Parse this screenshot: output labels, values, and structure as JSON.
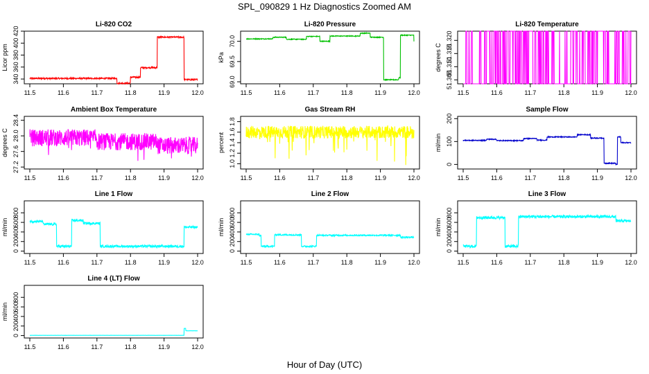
{
  "page": {
    "title": "SPL_090829  1 Hz Diagnostics Zoomed AM",
    "xlabel": "Hour of Day (UTC)"
  },
  "chart_data": [
    {
      "id": "co2",
      "type": "line",
      "title": "Li-820 CO2",
      "ylabel": "Licor ppm",
      "color": "#ff0000",
      "xlim": [
        11.5,
        12.0
      ],
      "ylim": [
        332,
        420
      ],
      "xticks": [
        "11.5",
        "11.6",
        "11.7",
        "11.8",
        "11.9",
        "12.0"
      ],
      "yticks": [
        340,
        360,
        380,
        400,
        420
      ],
      "ytick_labels": [
        "340",
        "360",
        "380",
        "400",
        "420"
      ],
      "pattern": "steps",
      "steps": [
        [
          11.5,
          341
        ],
        [
          11.76,
          333
        ],
        [
          11.8,
          343
        ],
        [
          11.83,
          359
        ],
        [
          11.88,
          410
        ],
        [
          11.96,
          339
        ],
        [
          12.0,
          339
        ]
      ],
      "noise": 1.2
    },
    {
      "id": "pressure",
      "type": "line",
      "title": "Li-820 Pressure",
      "ylabel": "kPa",
      "color": "#00c000",
      "xlim": [
        11.5,
        12.0
      ],
      "ylim": [
        68.95,
        70.25
      ],
      "xticks": [
        "11.5",
        "11.6",
        "11.7",
        "11.8",
        "11.9",
        "12.0"
      ],
      "yticks": [
        69.0,
        69.5,
        70.0
      ],
      "ytick_labels": [
        "69.0",
        "69.5",
        "70.0"
      ],
      "pattern": "steps",
      "steps": [
        [
          11.5,
          70.06
        ],
        [
          11.53,
          70.06
        ],
        [
          11.58,
          70.1
        ],
        [
          11.62,
          70.05
        ],
        [
          11.67,
          70.05
        ],
        [
          11.68,
          70.12
        ],
        [
          11.72,
          70.0
        ],
        [
          11.75,
          70.13
        ],
        [
          11.84,
          70.2
        ],
        [
          11.87,
          70.1
        ],
        [
          11.91,
          69.05
        ],
        [
          11.955,
          69.1
        ],
        [
          11.96,
          70.15
        ],
        [
          12.0,
          70.0
        ]
      ],
      "noise": 0.01
    },
    {
      "id": "licor_temp",
      "type": "line",
      "title": "Li-820 Temperature",
      "ylabel": "degrees C",
      "color": "#ff00ff",
      "xlim": [
        11.5,
        12.0
      ],
      "ylim": [
        51.3035,
        51.3235
      ],
      "xticks": [
        "11.5",
        "11.6",
        "11.7",
        "11.8",
        "11.9",
        "12.0"
      ],
      "yticks": [
        51.305,
        51.31,
        51.315,
        51.32
      ],
      "ytick_labels": [
        "51.305",
        "51.310",
        "51.315",
        "51.320"
      ],
      "pattern": "toggle",
      "low": 51.3035,
      "high": 51.3235
    },
    {
      "id": "ambient_temp",
      "type": "line",
      "title": "Ambient Box Temperature",
      "ylabel": "degrees C",
      "color": "#ff00ff",
      "xlim": [
        11.5,
        12.0
      ],
      "ylim": [
        27.15,
        28.5
      ],
      "xticks": [
        "11.5",
        "11.6",
        "11.7",
        "11.8",
        "11.9",
        "12.0"
      ],
      "yticks": [
        27.2,
        27.6,
        28.0,
        28.4
      ],
      "ytick_labels": [
        "27.2",
        "27.6",
        "28.0",
        "28.4"
      ],
      "pattern": "noise_band",
      "steps": [
        [
          11.5,
          27.95
        ],
        [
          11.7,
          27.85
        ],
        [
          11.88,
          27.75
        ],
        [
          12.0,
          27.72
        ]
      ],
      "noise": 0.22
    },
    {
      "id": "gas_rh",
      "type": "line",
      "title": "Gas Stream RH",
      "ylabel": "percent",
      "color": "#ffff00",
      "xlim": [
        11.5,
        12.0
      ],
      "ylim": [
        0.9,
        1.9
      ],
      "xticks": [
        "11.5",
        "11.6",
        "11.7",
        "11.8",
        "11.9",
        "12.0"
      ],
      "yticks": [
        1.0,
        1.2,
        1.4,
        1.6,
        1.8
      ],
      "ytick_labels": [
        "1.0",
        "1.2",
        "1.4",
        "1.6",
        "1.8"
      ],
      "pattern": "noise_band",
      "steps": [
        [
          11.5,
          1.6
        ],
        [
          12.0,
          1.6
        ]
      ],
      "noise": 0.12,
      "spikes_down": 0.55
    },
    {
      "id": "sample_flow",
      "type": "line",
      "title": "Sample Flow",
      "ylabel": "ml/min",
      "color": "#0000cc",
      "xlim": [
        11.5,
        12.0
      ],
      "ylim": [
        -20,
        210
      ],
      "xticks": [
        "11.5",
        "11.6",
        "11.7",
        "11.8",
        "11.9",
        "12.0"
      ],
      "yticks": [
        0,
        100,
        200
      ],
      "ytick_labels": [
        "0",
        "100",
        "200"
      ],
      "pattern": "steps",
      "steps": [
        [
          11.5,
          105
        ],
        [
          11.57,
          110
        ],
        [
          11.6,
          104
        ],
        [
          11.68,
          113
        ],
        [
          11.72,
          106
        ],
        [
          11.75,
          120
        ],
        [
          11.84,
          130
        ],
        [
          11.88,
          115
        ],
        [
          11.92,
          5
        ],
        [
          11.955,
          0
        ],
        [
          11.96,
          120
        ],
        [
          11.97,
          95
        ],
        [
          12.0,
          95
        ]
      ],
      "noise": 2
    },
    {
      "id": "line1_flow",
      "type": "line",
      "title": "Line 1 Flow",
      "ylabel": "ml/min",
      "color": "#00ffff",
      "xlim": [
        11.5,
        12.0
      ],
      "ylim": [
        -50,
        1050
      ],
      "xticks": [
        "11.5",
        "11.6",
        "11.7",
        "11.8",
        "11.9",
        "12.0"
      ],
      "yticks": [
        0,
        200,
        400,
        600,
        800
      ],
      "ytick_labels": [
        "0",
        "200",
        "400",
        "600",
        "800"
      ],
      "pattern": "steps",
      "steps": [
        [
          11.5,
          620
        ],
        [
          11.54,
          560
        ],
        [
          11.58,
          100
        ],
        [
          11.625,
          640
        ],
        [
          11.66,
          580
        ],
        [
          11.71,
          100
        ],
        [
          11.955,
          100
        ],
        [
          11.96,
          500
        ],
        [
          12.0,
          500
        ]
      ],
      "noise": 25
    },
    {
      "id": "line2_flow",
      "type": "line",
      "title": "Line 2 Flow",
      "ylabel": "ml/min",
      "color": "#00ffff",
      "xlim": [
        11.5,
        12.0
      ],
      "ylim": [
        -50,
        1050
      ],
      "xticks": [
        "11.5",
        "11.6",
        "11.7",
        "11.8",
        "11.9",
        "12.0"
      ],
      "yticks": [
        0,
        200,
        400,
        600,
        800
      ],
      "ytick_labels": [
        "0",
        "200",
        "400",
        "600",
        "800"
      ],
      "pattern": "steps",
      "steps": [
        [
          11.5,
          350
        ],
        [
          11.54,
          320
        ],
        [
          11.545,
          100
        ],
        [
          11.585,
          340
        ],
        [
          11.665,
          100
        ],
        [
          11.71,
          330
        ],
        [
          11.955,
          330
        ],
        [
          11.96,
          290
        ],
        [
          12.0,
          290
        ]
      ],
      "noise": 15
    },
    {
      "id": "line3_flow",
      "type": "line",
      "title": "Line 3 Flow",
      "ylabel": "ml/min",
      "color": "#00ffff",
      "xlim": [
        11.5,
        12.0
      ],
      "ylim": [
        -50,
        1050
      ],
      "xticks": [
        "11.5",
        "11.6",
        "11.7",
        "11.8",
        "11.9",
        "12.0"
      ],
      "yticks": [
        0,
        200,
        400,
        600,
        800
      ],
      "ytick_labels": [
        "0",
        "200",
        "400",
        "600",
        "800"
      ],
      "pattern": "steps",
      "steps": [
        [
          11.5,
          100
        ],
        [
          11.54,
          700
        ],
        [
          11.625,
          100
        ],
        [
          11.665,
          720
        ],
        [
          11.95,
          720
        ],
        [
          11.955,
          630
        ],
        [
          12.0,
          630
        ]
      ],
      "noise": 30
    },
    {
      "id": "line4_flow",
      "type": "line",
      "title": "Line 4 (LT) Flow",
      "ylabel": "ml/min",
      "color": "#00ffff",
      "xlim": [
        11.5,
        12.0
      ],
      "ylim": [
        -50,
        1050
      ],
      "xticks": [
        "11.5",
        "11.6",
        "11.7",
        "11.8",
        "11.9",
        "12.0"
      ],
      "yticks": [
        0,
        200,
        400,
        600,
        800
      ],
      "ytick_labels": [
        "0",
        "200",
        "400",
        "600",
        "800"
      ],
      "pattern": "steps",
      "steps": [
        [
          11.5,
          5
        ],
        [
          11.955,
          5
        ],
        [
          11.96,
          150
        ],
        [
          11.965,
          100
        ],
        [
          12.0,
          100
        ]
      ],
      "noise": 1
    }
  ]
}
